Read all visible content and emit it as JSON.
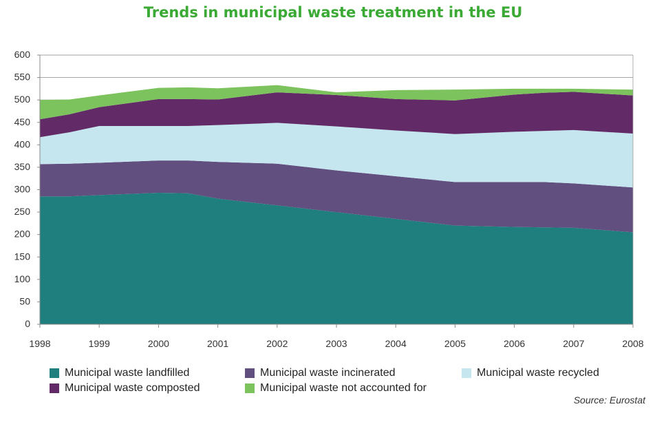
{
  "colors": {
    "title": "#3aaa35",
    "landfilled": "#1f7f7f",
    "incinerated": "#614f7f",
    "recycled": "#c5e6ee",
    "composted": "#622a66",
    "not_accounted": "#7cc35d",
    "axis": "#8a8a8a",
    "grid": "#9a9a9a"
  },
  "chart_data": {
    "type": "area",
    "title": "Trends in municipal waste treatment in the EU",
    "xlabel": "",
    "ylabel": "",
    "ylim": [
      0,
      600
    ],
    "yticks": [
      0,
      50,
      100,
      150,
      200,
      250,
      300,
      350,
      400,
      450,
      500,
      550,
      600
    ],
    "xticks": [
      "1998",
      "1999",
      "2000",
      "2001",
      "2002",
      "2003",
      "2004",
      "2005",
      "2006",
      "2007",
      "2008"
    ],
    "grid": true,
    "stacked": true,
    "x": [
      1998,
      1998.5,
      1999,
      2000,
      2000.5,
      2001,
      2002,
      2003,
      2004,
      2005,
      2006,
      2006.5,
      2007,
      2008
    ],
    "series": [
      {
        "key": "landfilled",
        "name": "Municipal waste landfilled",
        "values": [
          285,
          285,
          288,
          293,
          292,
          280,
          265,
          250,
          235,
          220,
          217,
          216,
          215,
          205
        ]
      },
      {
        "key": "incinerated",
        "name": "Municipal waste incinerated",
        "values": [
          72,
          73,
          72,
          72,
          73,
          82,
          93,
          93,
          95,
          97,
          100,
          101,
          99,
          100
        ]
      },
      {
        "key": "recycled",
        "name": "Municipal waste recycled",
        "values": [
          60,
          70,
          82,
          77,
          77,
          82,
          91,
          98,
          102,
          107,
          112,
          114,
          119,
          120
        ]
      },
      {
        "key": "composted",
        "name": "Municipal waste composted",
        "values": [
          40,
          40,
          42,
          60,
          60,
          57,
          68,
          70,
          70,
          75,
          83,
          85,
          85,
          85
        ]
      },
      {
        "key": "not_accounted",
        "name": "Municipal waste not accounted for",
        "values": [
          43,
          33,
          26,
          25,
          26,
          25,
          16,
          6,
          20,
          24,
          13,
          9,
          7,
          13
        ]
      }
    ],
    "legend": [
      {
        "key": "landfilled",
        "label": "Municipal waste landfilled"
      },
      {
        "key": "incinerated",
        "label": "Municipal waste incinerated"
      },
      {
        "key": "recycled",
        "label": "Municipal waste recycled"
      },
      {
        "key": "composted",
        "label": "Municipal waste composted"
      },
      {
        "key": "not_accounted",
        "label": "Municipal waste not accounted for"
      }
    ],
    "legend_position": "bottom",
    "source": "Source: Eurostat"
  }
}
